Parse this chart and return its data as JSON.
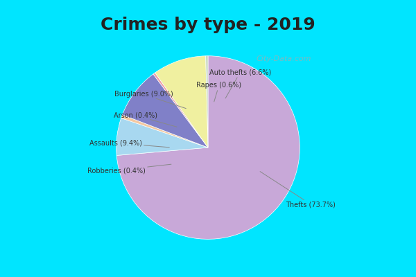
{
  "title": "Crimes by type - 2019",
  "slices": [
    {
      "label": "Thefts",
      "pct": 73.7,
      "color": "#C8A8D8"
    },
    {
      "label": "Auto thefts",
      "pct": 6.6,
      "color": "#A8D8F0"
    },
    {
      "label": "Rapes",
      "pct": 0.6,
      "color": "#F5C8A0"
    },
    {
      "label": "Burglaries",
      "pct": 9.0,
      "color": "#8080C8"
    },
    {
      "label": "Arson",
      "pct": 0.4,
      "color": "#F0A0A8"
    },
    {
      "label": "Assaults",
      "pct": 9.4,
      "color": "#F0F0A0"
    },
    {
      "label": "Robberies",
      "pct": 0.4,
      "color": "#C8D8C0"
    }
  ],
  "bg_color_top": "#00E5FF",
  "bg_color_inner": "#D8EDD8",
  "title_fontsize": 18,
  "watermark": "City-Data.com"
}
